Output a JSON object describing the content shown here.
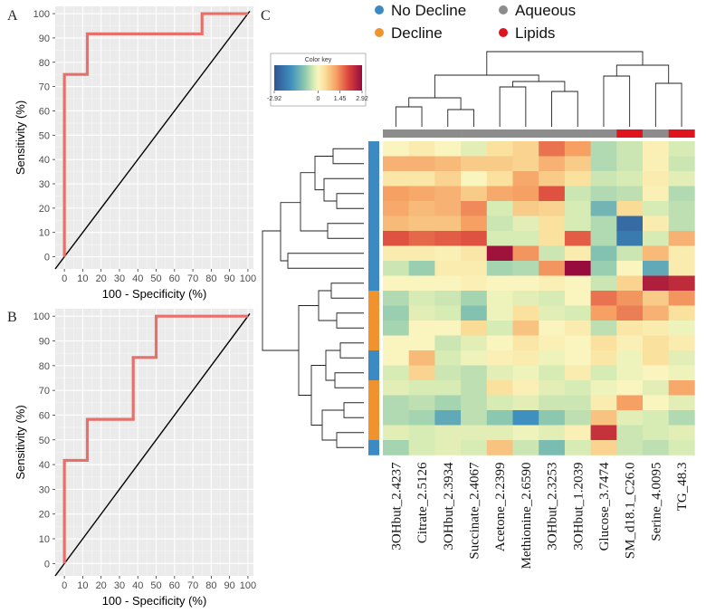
{
  "panels": {
    "a": "A",
    "b": "B",
    "c": "C"
  },
  "chart_data": [
    {
      "type": "line",
      "panel": "A",
      "title": "",
      "xlabel": "100 - Specificity (%)",
      "ylabel": "Sensitivity (%)",
      "xlim": [
        0,
        100
      ],
      "ylim": [
        0,
        100
      ],
      "xticks": [
        0,
        10,
        20,
        30,
        40,
        50,
        60,
        70,
        80,
        90,
        100
      ],
      "yticks": [
        0,
        10,
        20,
        30,
        40,
        50,
        60,
        70,
        80,
        90,
        100
      ],
      "grid": true,
      "series": [
        {
          "name": "ROC",
          "color": "#e8706a",
          "x": [
            0,
            0,
            12.5,
            12.5,
            75,
            75,
            100
          ],
          "y": [
            0,
            75,
            75,
            91.7,
            91.7,
            100,
            100
          ]
        },
        {
          "name": "reference",
          "color": "#000000",
          "x": [
            -5,
            101
          ],
          "y": [
            -5,
            101
          ]
        }
      ]
    },
    {
      "type": "line",
      "panel": "B",
      "title": "",
      "xlabel": "100 - Specificity (%)",
      "ylabel": "Sensitivity (%)",
      "xlim": [
        0,
        100
      ],
      "ylim": [
        0,
        100
      ],
      "xticks": [
        0,
        10,
        20,
        30,
        40,
        50,
        60,
        70,
        80,
        90,
        100
      ],
      "yticks": [
        0,
        10,
        20,
        30,
        40,
        50,
        60,
        70,
        80,
        90,
        100
      ],
      "grid": true,
      "series": [
        {
          "name": "ROC",
          "color": "#e8706a",
          "x": [
            0,
            0,
            12.5,
            12.5,
            37.5,
            37.5,
            50,
            50,
            100
          ],
          "y": [
            0,
            41.7,
            41.7,
            58.3,
            58.3,
            83.3,
            83.3,
            100,
            100
          ]
        },
        {
          "name": "reference",
          "color": "#000000",
          "x": [
            -5,
            101
          ],
          "y": [
            -5,
            101
          ]
        }
      ]
    },
    {
      "type": "heatmap",
      "panel": "C",
      "title": "",
      "columns": [
        "3OHbut_2.4237",
        "Citrate_2.5126",
        "3OHbut_2.3934",
        "Succinate_2.4067",
        "Acetone_2.2399",
        "Methionine_2.6590",
        "3OHbut_2.3253",
        "3OHbut_1.2039",
        "Glucose_3.7474",
        "SM_d18.1_C26.0",
        "Serine_4.0095",
        "TG_48.3"
      ],
      "column_groups": [
        "Aqueous",
        "Aqueous",
        "Aqueous",
        "Aqueous",
        "Aqueous",
        "Aqueous",
        "Aqueous",
        "Aqueous",
        "Aqueous",
        "Lipids",
        "Aqueous",
        "Lipids"
      ],
      "row_groups": [
        "No Decline",
        "No Decline",
        "No Decline",
        "No Decline",
        "No Decline",
        "No Decline",
        "No Decline",
        "No Decline",
        "No Decline",
        "No Decline",
        "Decline",
        "Decline",
        "Decline",
        "Decline",
        "No Decline",
        "No Decline",
        "Decline",
        "Decline",
        "Decline",
        "Decline",
        "No Decline"
      ],
      "values": [
        [
          0.0,
          0.2,
          0.0,
          -0.2,
          0.4,
          0.6,
          1.6,
          1.2,
          -0.6,
          -0.4,
          0.1,
          -0.3
        ],
        [
          1.0,
          1.0,
          0.9,
          0.7,
          0.7,
          0.6,
          1.0,
          0.7,
          -0.6,
          -0.4,
          0.1,
          -0.4
        ],
        [
          0.3,
          0.3,
          0.6,
          0.0,
          0.4,
          1.1,
          0.7,
          0.4,
          -0.4,
          -0.3,
          0.2,
          -0.2
        ],
        [
          1.2,
          1.1,
          1.0,
          0.7,
          1.1,
          1.2,
          1.9,
          -0.4,
          -0.6,
          -0.5,
          0.1,
          -0.6
        ],
        [
          1.1,
          0.9,
          1.0,
          1.4,
          -0.3,
          0.7,
          0.6,
          -0.3,
          -1.2,
          0.5,
          -0.3,
          -0.5
        ],
        [
          0.9,
          0.8,
          0.8,
          1.2,
          -0.4,
          -0.2,
          0.4,
          -0.3,
          -0.6,
          -2.5,
          0.2,
          -0.5
        ],
        [
          1.9,
          1.7,
          1.8,
          1.9,
          -0.3,
          -0.3,
          0.4,
          1.8,
          -0.6,
          -2.2,
          -0.3,
          1.0
        ],
        [
          0.2,
          0.2,
          0.1,
          0.3,
          2.8,
          1.3,
          -0.4,
          0.2,
          -1.0,
          -0.4,
          0.9,
          0.2
        ],
        [
          -0.4,
          -0.8,
          0.2,
          0.2,
          -0.7,
          -0.6,
          1.3,
          2.9,
          -0.8,
          0.0,
          -1.4,
          0.2
        ],
        [
          0.0,
          0.0,
          0.0,
          0.1,
          0.0,
          0.0,
          0.1,
          0.0,
          -0.4,
          0.6,
          2.6,
          2.4
        ],
        [
          -0.6,
          -0.3,
          -0.4,
          -0.7,
          -0.1,
          -0.2,
          -0.3,
          0.0,
          1.6,
          1.3,
          0.7,
          1.3
        ],
        [
          -0.8,
          -0.2,
          -0.3,
          -1.0,
          -0.1,
          0.4,
          -0.2,
          -0.3,
          1.2,
          1.5,
          1.0,
          0.4
        ],
        [
          -0.7,
          0.0,
          0.0,
          0.5,
          -0.3,
          0.8,
          0.0,
          0.2,
          -0.5,
          0.3,
          0.2,
          -0.1
        ],
        [
          0.0,
          0.0,
          -0.4,
          -0.2,
          0.0,
          0.3,
          0.1,
          0.0,
          0.4,
          0.1,
          0.4,
          0.2
        ],
        [
          0.0,
          0.9,
          -0.3,
          -0.1,
          0.1,
          0.2,
          -0.1,
          0.0,
          0.3,
          -0.1,
          0.4,
          -0.2
        ],
        [
          -0.3,
          0.6,
          -0.4,
          -0.5,
          -0.2,
          -0.1,
          -0.3,
          0.2,
          -0.3,
          -0.1,
          0.0,
          -0.1
        ],
        [
          -0.2,
          -0.3,
          -0.3,
          -0.5,
          0.4,
          0.1,
          -0.2,
          -0.3,
          -0.1,
          0.0,
          -0.2,
          1.1
        ],
        [
          -0.6,
          -0.5,
          -0.7,
          -0.5,
          -0.3,
          -0.2,
          -0.4,
          -0.4,
          0.2,
          1.2,
          0.0,
          -0.2
        ],
        [
          -0.6,
          -0.7,
          -1.4,
          -0.5,
          -0.9,
          -1.8,
          -0.9,
          -0.5,
          0.8,
          -0.2,
          -0.3,
          -0.6
        ],
        [
          -0.2,
          -0.3,
          -0.2,
          -0.2,
          -0.2,
          -0.1,
          -0.2,
          0.1,
          2.3,
          -0.4,
          -0.3,
          -0.2
        ],
        [
          -0.7,
          -0.3,
          -0.2,
          -0.3,
          0.8,
          -0.4,
          -1.1,
          -0.3,
          0.6,
          -0.4,
          -0.5,
          -0.3
        ]
      ],
      "color_key": {
        "title": "Color key",
        "min": -2.92,
        "max": 2.92,
        "ticks": [
          "-2.92",
          "0",
          "1.45",
          "2.92"
        ],
        "tick_values": [
          -2.92,
          0,
          1.45,
          2.92
        ]
      },
      "legend": [
        {
          "label": "No Decline",
          "color": "#3b8ac4"
        },
        {
          "label": "Decline",
          "color": "#f0922e"
        },
        {
          "label": "Aqueous",
          "color": "#8c8c8c"
        },
        {
          "label": "Lipids",
          "color": "#e0141e"
        }
      ]
    }
  ]
}
